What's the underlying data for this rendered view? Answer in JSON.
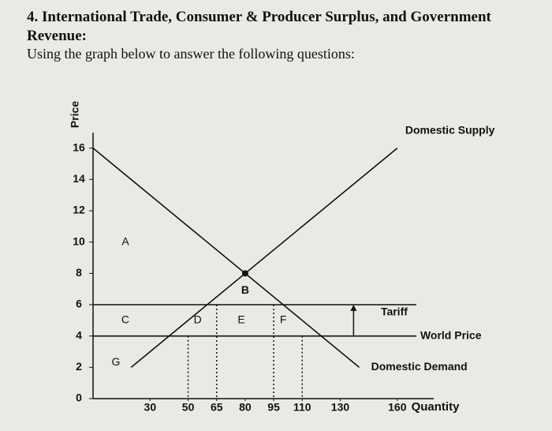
{
  "chart_data": {
    "type": "line",
    "title": "4. International Trade, Consumer & Producer Surplus, and Government Revenue:",
    "subtitle": "Using the graph below to answer the following questions:",
    "y_label": "Price",
    "x_label": "Quantity",
    "xlim": [
      0,
      175
    ],
    "ylim": [
      0,
      18
    ],
    "xticks": [
      30,
      50,
      65,
      80,
      95,
      110,
      130,
      160
    ],
    "yticks": [
      0,
      2,
      4,
      6,
      8,
      10,
      12,
      14,
      16
    ],
    "series": [
      {
        "name": "Domestic Supply",
        "color": "#111111",
        "x": [
          20,
          160
        ],
        "values": [
          2,
          16
        ]
      },
      {
        "name": "Domestic Demand",
        "color": "#111111",
        "x": [
          0,
          140
        ],
        "values": [
          16,
          2
        ]
      },
      {
        "name": "World Price",
        "color": "#111111",
        "x": [
          0,
          170
        ],
        "values": [
          4,
          4
        ]
      },
      {
        "name": "Tariff",
        "color": "#111111",
        "x": [
          0,
          170
        ],
        "values": [
          6,
          6
        ]
      }
    ],
    "guides": [
      {
        "x": 50,
        "y": 4
      },
      {
        "x": 65,
        "y": 6
      },
      {
        "x": 95,
        "y": 6
      },
      {
        "x": 110,
        "y": 4
      }
    ],
    "point": {
      "label": "B",
      "x": 80,
      "y": 8
    },
    "regions": [
      {
        "label": "A",
        "x": 17,
        "y": 10
      },
      {
        "label": "C",
        "x": 17,
        "y": 5
      },
      {
        "label": "D",
        "x": 55,
        "y": 5
      },
      {
        "label": "E",
        "x": 78,
        "y": 5
      },
      {
        "label": "F",
        "x": 100,
        "y": 5
      },
      {
        "label": "G",
        "x": 12,
        "y": 2.3
      }
    ]
  }
}
